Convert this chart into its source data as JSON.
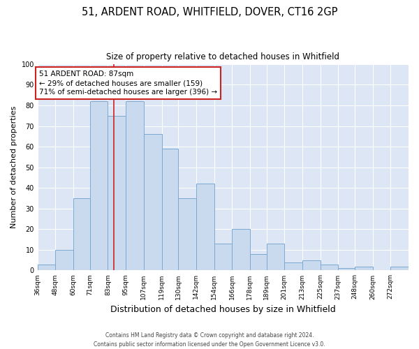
{
  "title": "51, ARDENT ROAD, WHITFIELD, DOVER, CT16 2GP",
  "subtitle": "Size of property relative to detached houses in Whitfield",
  "xlabel": "Distribution of detached houses by size in Whitfield",
  "ylabel": "Number of detached properties",
  "categories": [
    "36sqm",
    "48sqm",
    "60sqm",
    "71sqm",
    "83sqm",
    "95sqm",
    "107sqm",
    "119sqm",
    "130sqm",
    "142sqm",
    "154sqm",
    "166sqm",
    "178sqm",
    "189sqm",
    "201sqm",
    "213sqm",
    "225sqm",
    "237sqm",
    "248sqm",
    "260sqm",
    "272sqm"
  ],
  "values": [
    3,
    10,
    35,
    82,
    75,
    82,
    66,
    59,
    35,
    42,
    13,
    20,
    8,
    13,
    4,
    5,
    3,
    1,
    2,
    0,
    2
  ],
  "bar_color": "#c9d9ee",
  "bar_edge_color": "#7ca8d0",
  "bin_edges": [
    36,
    48,
    60,
    71,
    83,
    95,
    107,
    119,
    130,
    142,
    154,
    166,
    178,
    189,
    201,
    213,
    225,
    237,
    248,
    260,
    272,
    284
  ],
  "annotation_title": "51 ARDENT ROAD: 87sqm",
  "annotation_line1": "← 29% of detached houses are smaller (159)",
  "annotation_line2": "71% of semi-detached houses are larger (396) →",
  "annotation_box_facecolor": "#ffffff",
  "annotation_box_edgecolor": "#cc2222",
  "vline_color": "#cc2222",
  "vline_x_bin": 4,
  "ylim": [
    0,
    100
  ],
  "yticks": [
    0,
    10,
    20,
    30,
    40,
    50,
    60,
    70,
    80,
    90,
    100
  ],
  "plot_bg_color": "#dce6f5",
  "fig_bg_color": "#ffffff",
  "grid_color": "#ffffff",
  "footer1": "Contains HM Land Registry data © Crown copyright and database right 2024.",
  "footer2": "Contains public sector information licensed under the Open Government Licence v3.0."
}
